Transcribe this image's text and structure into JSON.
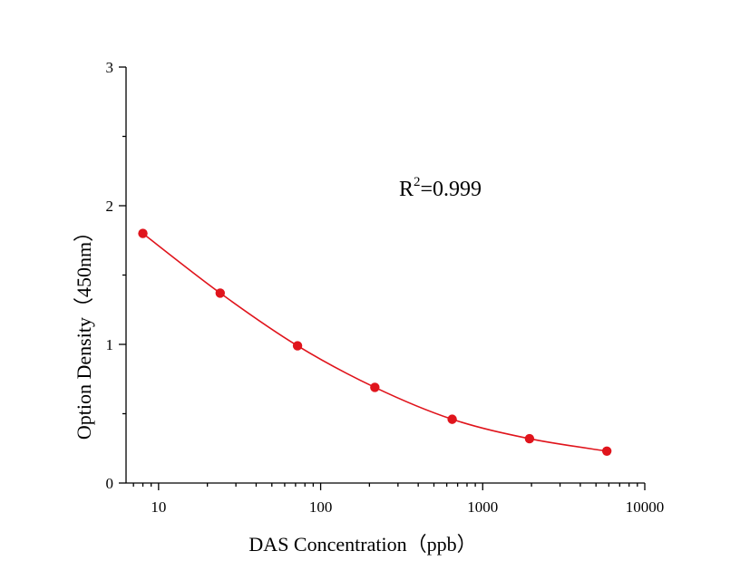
{
  "chart_data": {
    "type": "scatter",
    "xlabel": "DAS Concentration（ppb）",
    "ylabel": "Option Density（450nm）",
    "xscale": "log",
    "xlim": [
      6.3,
      10000
    ],
    "ylim": [
      0,
      3
    ],
    "x_ticks": [
      10,
      100,
      1000,
      10000
    ],
    "x_tick_labels": [
      "10",
      "100",
      "1000",
      "10000"
    ],
    "y_ticks": [
      0,
      1,
      2,
      3
    ],
    "y_tick_labels": [
      "0",
      "1",
      "2",
      "3"
    ],
    "grid": false,
    "series": [
      {
        "x": [
          8,
          24,
          72,
          216,
          648,
          1944,
          5832
        ],
        "y": [
          1.8,
          1.37,
          0.99,
          0.69,
          0.46,
          0.32,
          0.23
        ],
        "fit": "smooth-curve"
      }
    ],
    "annotation": {
      "base": "R",
      "sup": "2",
      "text": "=0.999"
    },
    "colors": {
      "series": "#e0141c",
      "axis": "#000000"
    }
  }
}
